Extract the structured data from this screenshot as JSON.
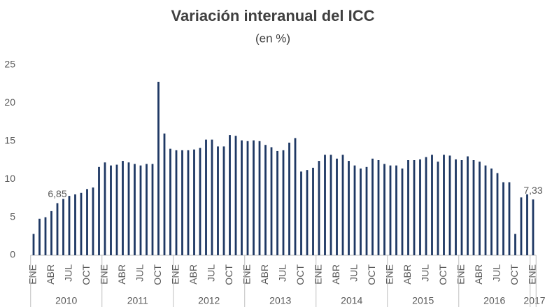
{
  "chart_data": {
    "type": "bar",
    "title": "Variación interanual del ICC",
    "subtitle": "(en %)",
    "categories": [
      "ENE",
      null,
      null,
      "ABR",
      null,
      null,
      "JUL",
      null,
      null,
      "OCT",
      null,
      null,
      "ENE",
      null,
      null,
      "ABR",
      null,
      null,
      "JUL",
      null,
      null,
      "OCT",
      null,
      null,
      "ENE",
      null,
      null,
      "ABR",
      null,
      null,
      "JUL",
      null,
      null,
      "OCT",
      null,
      null,
      "ENE",
      null,
      null,
      "ABR",
      null,
      null,
      "JUL",
      null,
      null,
      "OCT",
      null,
      null,
      "ENE",
      null,
      null,
      "ABR",
      null,
      null,
      "JUL",
      null,
      null,
      "OCT",
      null,
      null,
      "ENE",
      null,
      null,
      "ABR",
      null,
      null,
      "JUL",
      null,
      null,
      "OCT",
      null,
      null,
      "ENE",
      null,
      null,
      "ABR",
      null,
      null,
      "JUL",
      null,
      null,
      "OCT",
      null,
      null,
      "ENE"
    ],
    "years": [
      "2010",
      "2011",
      "2012",
      "2013",
      "2014",
      "2015",
      "2016",
      "2017"
    ],
    "values": [
      2.8,
      4.8,
      5.0,
      5.8,
      6.85,
      7.4,
      7.8,
      8.0,
      8.2,
      8.7,
      8.9,
      11.6,
      12.2,
      11.8,
      11.9,
      12.4,
      12.2,
      12.0,
      11.8,
      12.0,
      12.0,
      22.8,
      16.0,
      14.0,
      13.8,
      13.8,
      13.8,
      13.9,
      14.1,
      15.2,
      15.2,
      14.3,
      14.3,
      15.8,
      15.7,
      15.1,
      15.0,
      15.1,
      15.0,
      14.5,
      14.2,
      13.7,
      13.8,
      14.8,
      15.4,
      11.0,
      11.2,
      11.5,
      12.4,
      13.2,
      13.2,
      12.7,
      13.2,
      12.4,
      11.8,
      11.4,
      11.6,
      12.7,
      12.5,
      12.0,
      11.8,
      11.8,
      11.4,
      12.5,
      12.5,
      12.6,
      12.9,
      13.2,
      12.3,
      13.2,
      13.1,
      12.6,
      12.5,
      13.0,
      12.5,
      12.3,
      11.8,
      11.4,
      10.8,
      9.6,
      9.6,
      2.8,
      7.6,
      8.0,
      7.33
    ],
    "value_labels": [
      null,
      null,
      null,
      null,
      "6,85",
      null,
      null,
      null,
      null,
      null,
      null,
      null,
      null,
      null,
      null,
      null,
      null,
      null,
      null,
      null,
      null,
      null,
      null,
      null,
      null,
      null,
      null,
      null,
      null,
      null,
      null,
      null,
      null,
      null,
      null,
      null,
      null,
      null,
      null,
      null,
      null,
      null,
      null,
      null,
      null,
      null,
      null,
      null,
      null,
      null,
      null,
      null,
      null,
      null,
      null,
      null,
      null,
      null,
      null,
      null,
      null,
      null,
      null,
      null,
      null,
      null,
      null,
      null,
      null,
      null,
      null,
      null,
      null,
      null,
      null,
      null,
      null,
      null,
      null,
      null,
      null,
      null,
      null,
      null,
      "7,33"
    ],
    "color": "#1f3864",
    "ylim": [
      0,
      25
    ],
    "yticks": [
      0,
      5,
      10,
      15,
      20,
      25
    ],
    "grid": false
  }
}
